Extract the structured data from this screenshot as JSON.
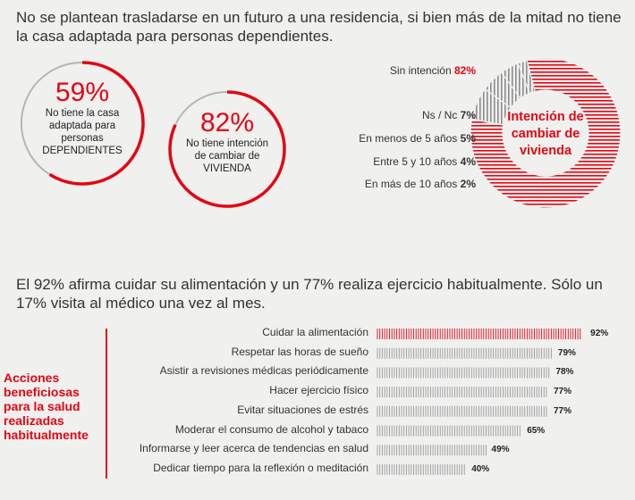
{
  "headline1": "No se plantean trasladarse en un futuro a una residencia, si bien más de la mitad no tiene la casa adaptada para personas dependientes.",
  "headline2": "El 92% afirma cuidar su alimentación y un 77% realiza ejercicio habitualmente. Sólo un 17% visita al médico una vez al mes.",
  "ring1": {
    "value": "59%",
    "percent": 59,
    "line1": "No tiene la casa",
    "line2": "adaptada para",
    "line3": "personas",
    "line4": "DEPENDIENTES"
  },
  "ring2": {
    "value": "82%",
    "percent": 82,
    "line1": "No tiene intención",
    "line2": "de cambiar de",
    "line3": "VIVIENDA"
  },
  "pie": {
    "title_line1": "Intención de",
    "title_line2": "cambiar de",
    "title_line3": "vivienda",
    "legend": [
      {
        "label": "Sin intención",
        "value": "82%"
      },
      {
        "label": "Ns / Nc",
        "value": "7%"
      },
      {
        "label": "En menos de 5 años",
        "value": "5%"
      },
      {
        "label": "Entre 5 y 10 años",
        "value": "4%"
      },
      {
        "label": "En más de 10 años",
        "value": "2%"
      }
    ]
  },
  "actions_title": "Acciones beneficiosas para la salud realizadas habitualmente",
  "colors": {
    "red": "#e30613",
    "gray": "#8c8c8c",
    "bg": "#f0f0ef"
  },
  "chart_data": [
    {
      "type": "pie",
      "title": "Intención de cambiar de vivienda",
      "categories": [
        "Sin intención",
        "Ns / Nc",
        "En menos de 5 años",
        "Entre 5 y 10 años",
        "En más de 10 años"
      ],
      "values": [
        82,
        7,
        5,
        4,
        2
      ]
    },
    {
      "type": "bar",
      "title": "Acciones beneficiosas para la salud realizadas habitualmente",
      "categories": [
        "Cuidar la alimentación",
        "Respetar las horas de sueño",
        "Asistir a revisiones médicas periódicamente",
        "Hacer ejercicio físico",
        "Evitar situaciones de estrés",
        "Moderar el consumo de alcohol y tabaco",
        "Informarse y leer acerca de tendencias en salud",
        "Dedicar tiempo para la reflexión o meditación"
      ],
      "values": [
        92,
        79,
        78,
        77,
        77,
        65,
        49,
        40
      ],
      "labels": [
        "92%",
        "79%",
        "78%",
        "77%",
        "77%",
        "65%",
        "49%",
        "40%"
      ],
      "xlim": [
        0,
        100
      ]
    }
  ]
}
